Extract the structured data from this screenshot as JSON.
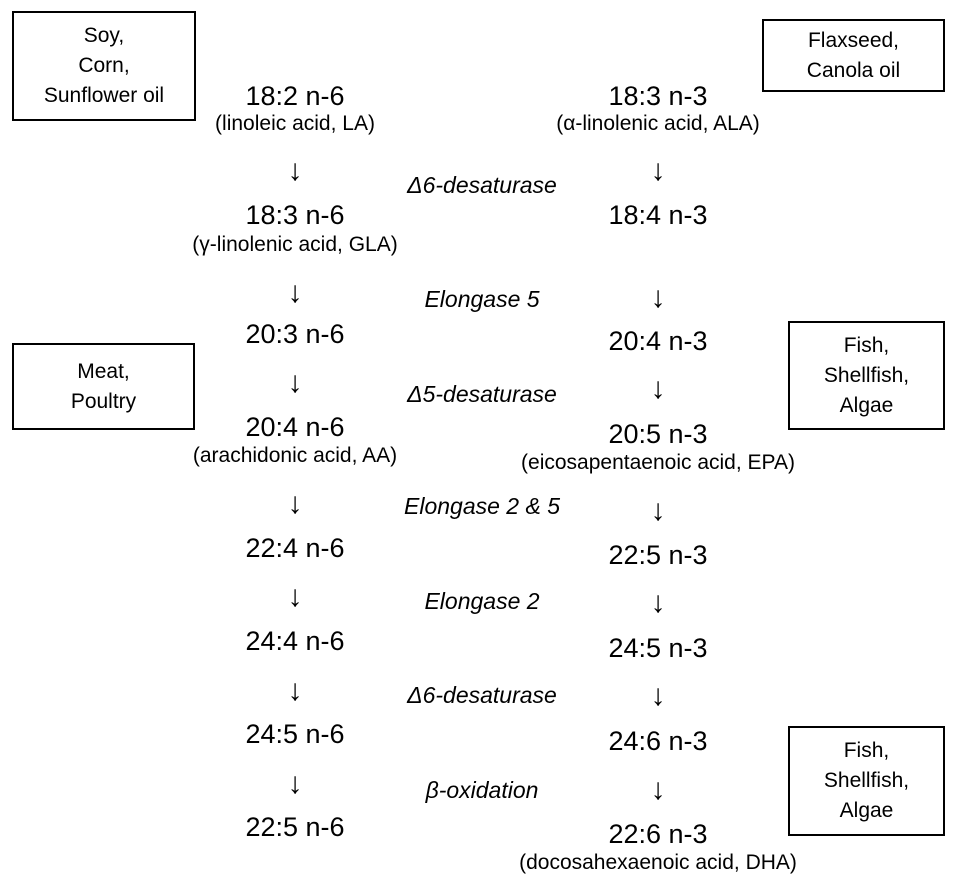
{
  "sources": {
    "soy_corn_sunflower": [
      "Soy,",
      "Corn,",
      "Sunflower oil"
    ],
    "flaxseed_canola": [
      "Flaxseed,",
      "Canola oil"
    ],
    "meat_poultry": [
      "Meat,",
      "Poultry"
    ],
    "fish_epa": [
      "Fish,",
      "Shellfish,",
      "Algae"
    ],
    "fish_dha": [
      "Fish,",
      "Shellfish,",
      "Algae"
    ]
  },
  "omega6": {
    "la": "18:2 n-6",
    "la_name": "(linoleic acid, LA)",
    "gla": "18:3 n-6",
    "gla_name": "(γ-linolenic acid, GLA)",
    "dgla": "20:3 n-6",
    "aa": "20:4 n-6",
    "aa_name": "(arachidonic acid, AA)",
    "c22_4": "22:4 n-6",
    "c24_4": "24:4 n-6",
    "c24_5": "24:5 n-6",
    "c22_5": "22:5 n-6"
  },
  "omega3": {
    "ala": "18:3 n-3",
    "ala_name": "(α-linolenic acid, ALA)",
    "sda": "18:4 n-3",
    "eta": "20:4 n-3",
    "epa": "20:5 n-3",
    "epa_name": "(eicosapentaenoic acid, EPA)",
    "dpa": "22:5 n-3",
    "c24_5": "24:5 n-3",
    "c24_6": "24:6 n-3",
    "dha": "22:6 n-3",
    "dha_name": "(docosahexaenoic acid, DHA)"
  },
  "enzymes": {
    "d6_first": "Δ6-desaturase",
    "elongase5": "Elongase 5",
    "d5": "Δ5-desaturase",
    "elongase2_5": "Elongase 2 & 5",
    "elongase2": "Elongase 2",
    "d6_second": "Δ6-desaturase",
    "beta_ox": "β-oxidation"
  },
  "arrow_glyph": "↓"
}
